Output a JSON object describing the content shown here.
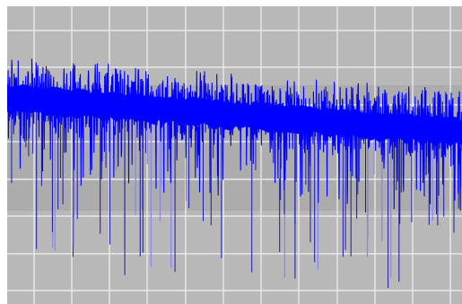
{
  "waveform_view": {
    "background_color": "#b8b8b8",
    "highlight_band_color": "#a6a6a6",
    "gridline_color": "#e8e8e8",
    "trace_color": "#0000ff",
    "spike_color": "#1a1aa8",
    "faint_spike_color": "#8a8ae6",
    "grid_visible": true,
    "vertical_gridlines": 12,
    "horizontal_gridlines": 8
  }
}
